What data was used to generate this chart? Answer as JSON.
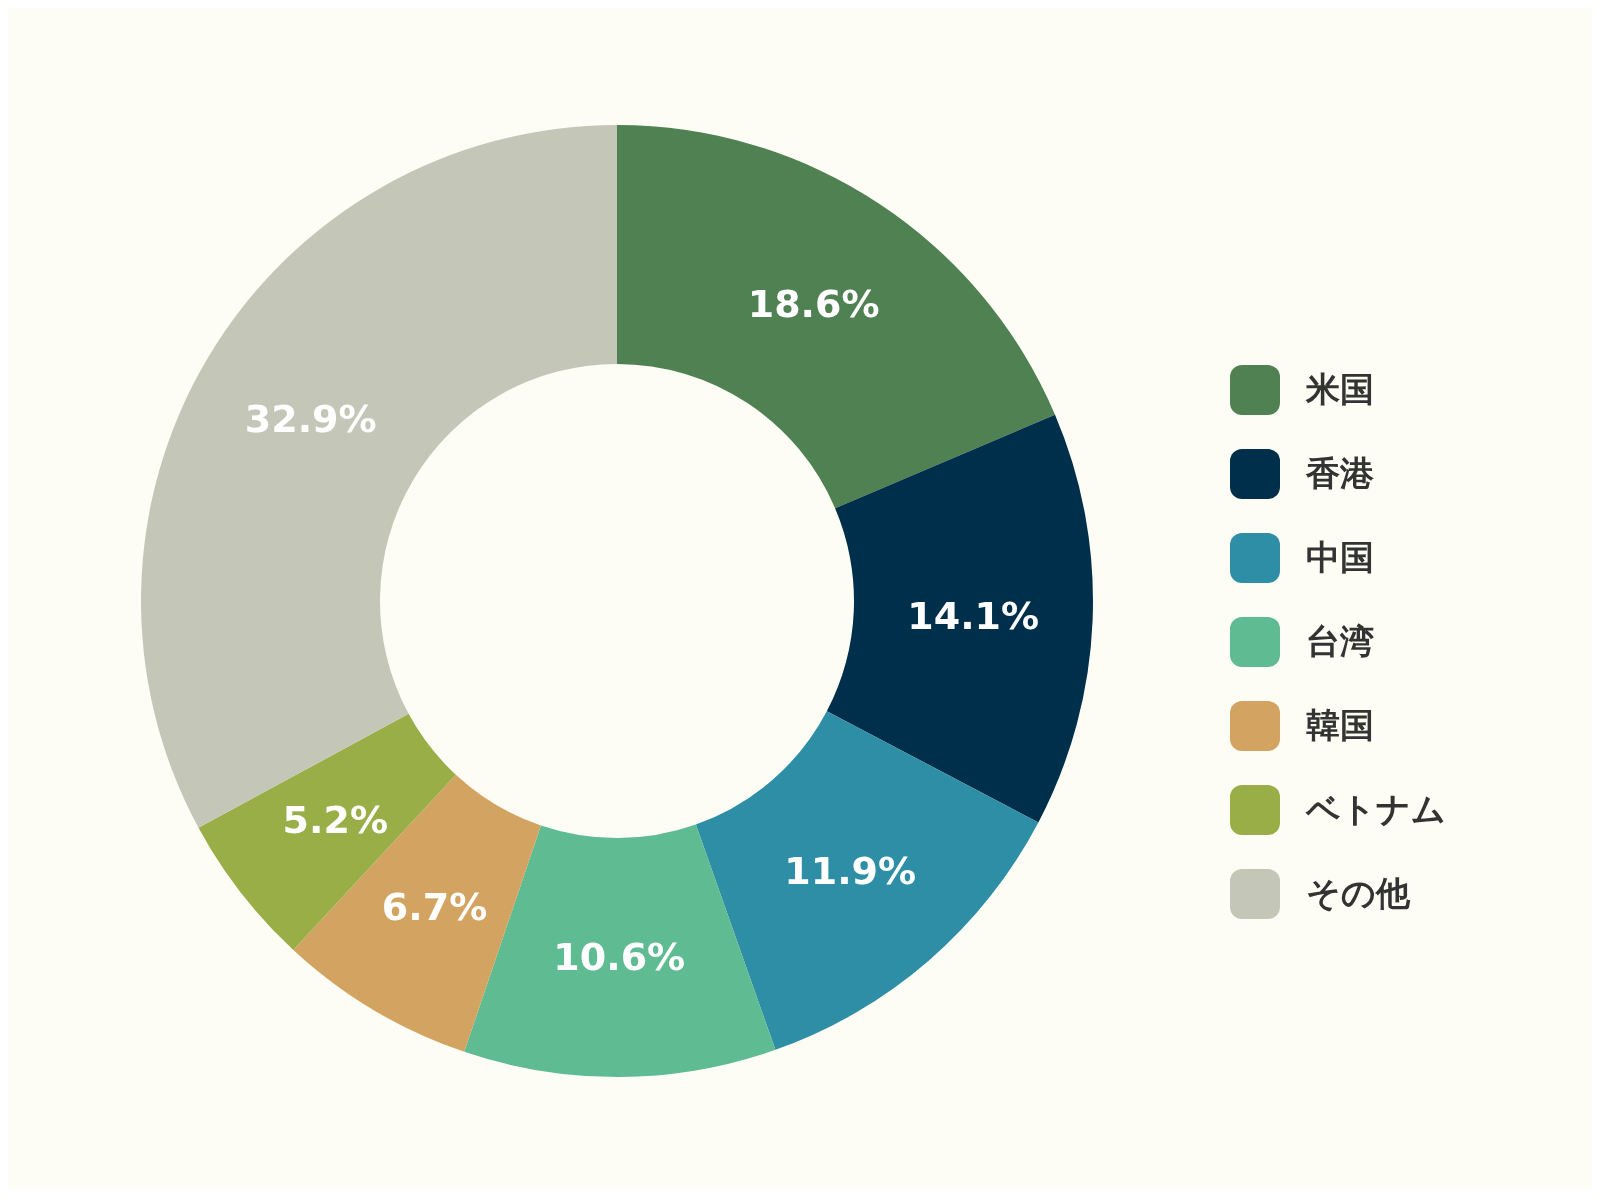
{
  "chart_data": {
    "type": "donut",
    "categories": [
      "米国",
      "香港",
      "中国",
      "台湾",
      "韓国",
      "ベトナム",
      "その他"
    ],
    "values": [
      18.6,
      14.1,
      11.9,
      10.6,
      6.7,
      5.2,
      32.9
    ],
    "colors": [
      "#4f8152",
      "#002f4b",
      "#2e8ea6",
      "#5fbb91",
      "#d3a461",
      "#9aae47",
      "#c4c7b8"
    ],
    "value_labels": [
      "18.6%",
      "14.1%",
      "11.9%",
      "10.6%",
      "6.7%",
      "5.2%",
      "32.9%"
    ],
    "legend": "right"
  }
}
